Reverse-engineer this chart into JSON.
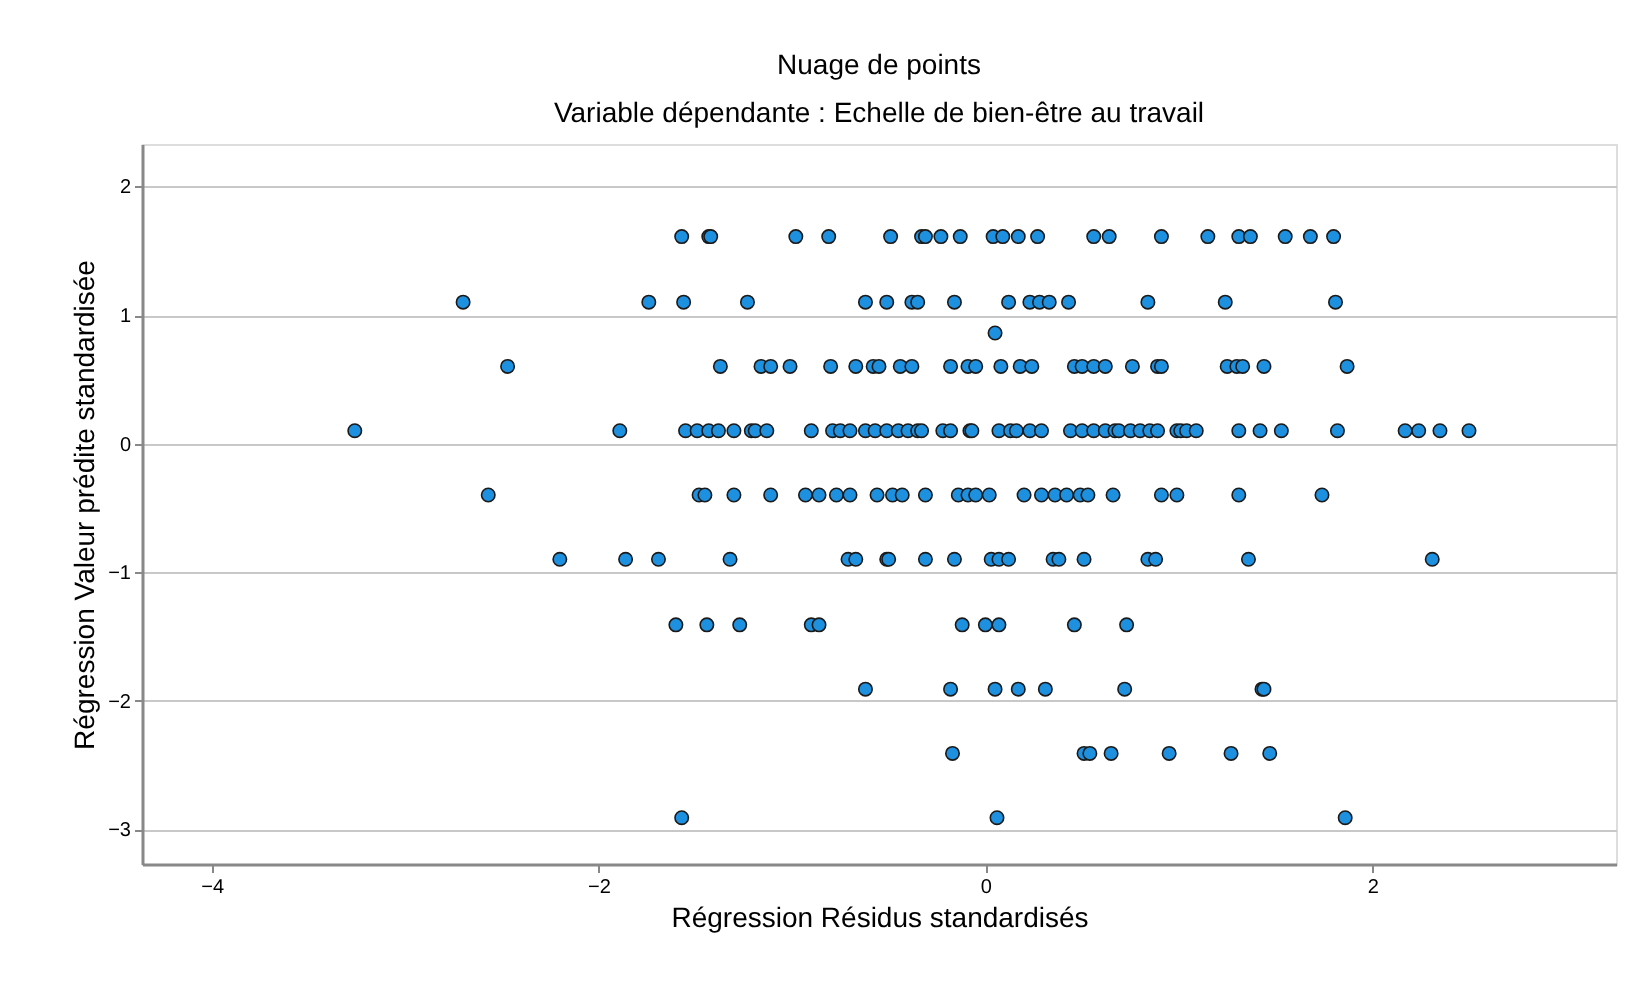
{
  "chart_data": {
    "type": "scatter",
    "title": "Nuage de points",
    "subtitle": "Variable dépendante : Echelle de bien-être au travail",
    "xlabel": "Régression Résidus standardisés",
    "ylabel": "Régression Valeur prédite standardisée",
    "xlim": [
      -4.36,
      3.26
    ],
    "ylim": [
      -3.27,
      2.33
    ],
    "xticks": [
      -4,
      -2,
      0,
      2
    ],
    "yticks": [
      -3,
      -2,
      -1,
      0,
      1,
      2
    ],
    "grid": "y",
    "marker": "circle",
    "series": [
      {
        "color": "#1e90e0",
        "x": [
          -1.57,
          -1.43,
          -1.42,
          -0.98,
          -0.81,
          -0.49,
          -0.33,
          -0.31,
          -0.23,
          -0.13,
          0.04,
          0.09,
          0.17,
          0.27,
          0.56,
          0.64,
          0.91,
          1.15,
          1.31,
          1.37,
          1.55,
          1.68,
          1.8,
          -2.7,
          -1.74,
          -1.56,
          -1.23,
          -0.62,
          -0.51,
          -0.38,
          -0.35,
          -0.16,
          0.12,
          0.23,
          0.28,
          0.33,
          0.43,
          0.84,
          1.24,
          1.81,
          0.05,
          -2.47,
          -1.37,
          -1.16,
          -1.11,
          -1.01,
          -0.8,
          -0.67,
          -0.58,
          -0.55,
          -0.44,
          -0.38,
          -0.18,
          -0.09,
          -0.05,
          0.08,
          0.18,
          0.24,
          0.46,
          0.5,
          0.56,
          0.62,
          0.76,
          0.89,
          0.91,
          1.25,
          1.3,
          1.33,
          1.44,
          1.87,
          -3.26,
          -1.89,
          -1.55,
          -1.49,
          -1.43,
          -1.38,
          -1.3,
          -1.21,
          -1.19,
          -1.13,
          -0.9,
          -0.79,
          -0.75,
          -0.7,
          -0.62,
          -0.57,
          -0.51,
          -0.45,
          -0.4,
          -0.35,
          -0.33,
          -0.22,
          -0.18,
          -0.08,
          -0.07,
          0.07,
          0.13,
          0.16,
          0.23,
          0.29,
          0.44,
          0.5,
          0.56,
          0.62,
          0.67,
          0.69,
          0.75,
          0.8,
          0.85,
          0.89,
          0.99,
          1.01,
          1.04,
          1.09,
          1.31,
          1.42,
          1.53,
          1.82,
          2.17,
          2.24,
          2.35,
          2.5,
          -2.57,
          -1.48,
          -1.45,
          -1.3,
          -1.11,
          -0.93,
          -0.86,
          -0.77,
          -0.7,
          -0.56,
          -0.48,
          -0.43,
          -0.31,
          -0.14,
          -0.09,
          -0.05,
          0.02,
          0.2,
          0.29,
          0.36,
          0.42,
          0.49,
          0.53,
          0.66,
          0.91,
          0.99,
          1.31,
          1.74,
          -2.2,
          -1.86,
          -1.69,
          -1.32,
          -0.71,
          -0.67,
          -0.51,
          -0.5,
          -0.31,
          -0.16,
          0.03,
          0.07,
          0.12,
          0.35,
          0.38,
          0.51,
          0.84,
          0.88,
          1.36,
          2.31,
          -1.6,
          -1.44,
          -1.27,
          -0.9,
          -0.86,
          -0.12,
          0.0,
          0.07,
          0.46,
          0.73,
          -0.62,
          -0.18,
          0.05,
          0.17,
          0.31,
          0.72,
          1.43,
          1.44,
          -0.17,
          0.51,
          0.54,
          0.65,
          0.95,
          1.27,
          1.47,
          -1.57,
          0.06,
          1.86
        ],
        "values": [
          1.61,
          1.61,
          1.61,
          1.61,
          1.61,
          1.61,
          1.61,
          1.61,
          1.61,
          1.61,
          1.61,
          1.61,
          1.61,
          1.61,
          1.61,
          1.61,
          1.61,
          1.61,
          1.61,
          1.61,
          1.61,
          1.61,
          1.61,
          1.1,
          1.1,
          1.1,
          1.1,
          1.1,
          1.1,
          1.1,
          1.1,
          1.1,
          1.1,
          1.1,
          1.1,
          1.1,
          1.1,
          1.1,
          1.1,
          1.1,
          0.86,
          0.6,
          0.6,
          0.6,
          0.6,
          0.6,
          0.6,
          0.6,
          0.6,
          0.6,
          0.6,
          0.6,
          0.6,
          0.6,
          0.6,
          0.6,
          0.6,
          0.6,
          0.6,
          0.6,
          0.6,
          0.6,
          0.6,
          0.6,
          0.6,
          0.6,
          0.6,
          0.6,
          0.6,
          0.6,
          0.1,
          0.1,
          0.1,
          0.1,
          0.1,
          0.1,
          0.1,
          0.1,
          0.1,
          0.1,
          0.1,
          0.1,
          0.1,
          0.1,
          0.1,
          0.1,
          0.1,
          0.1,
          0.1,
          0.1,
          0.1,
          0.1,
          0.1,
          0.1,
          0.1,
          0.1,
          0.1,
          0.1,
          0.1,
          0.1,
          0.1,
          0.1,
          0.1,
          0.1,
          0.1,
          0.1,
          0.1,
          0.1,
          0.1,
          0.1,
          0.1,
          0.1,
          0.1,
          0.1,
          0.1,
          0.1,
          0.1,
          0.1,
          0.1,
          0.1,
          0.1,
          0.1,
          -0.4,
          -0.4,
          -0.4,
          -0.4,
          -0.4,
          -0.4,
          -0.4,
          -0.4,
          -0.4,
          -0.4,
          -0.4,
          -0.4,
          -0.4,
          -0.4,
          -0.4,
          -0.4,
          -0.4,
          -0.4,
          -0.4,
          -0.4,
          -0.4,
          -0.4,
          -0.4,
          -0.4,
          -0.4,
          -0.4,
          -0.4,
          -0.4,
          -0.9,
          -0.9,
          -0.9,
          -0.9,
          -0.9,
          -0.9,
          -0.9,
          -0.9,
          -0.9,
          -0.9,
          -0.9,
          -0.9,
          -0.9,
          -0.9,
          -0.9,
          -0.9,
          -0.9,
          -0.9,
          -0.9,
          -0.9,
          -1.41,
          -1.41,
          -1.41,
          -1.41,
          -1.41,
          -1.41,
          -1.41,
          -1.41,
          -1.41,
          -1.41,
          -1.91,
          -1.91,
          -1.91,
          -1.91,
          -1.91,
          -1.91,
          -1.91,
          -1.91,
          -2.41,
          -2.41,
          -2.41,
          -2.41,
          -2.41,
          -2.41,
          -2.41,
          -2.91,
          -2.91,
          -2.91
        ]
      }
    ]
  }
}
